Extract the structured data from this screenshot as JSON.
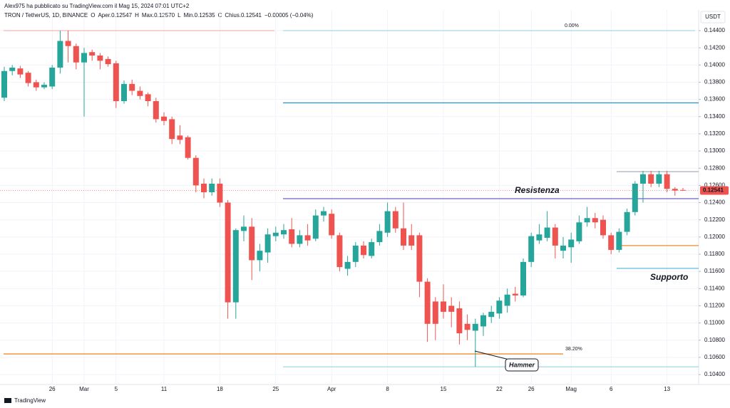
{
  "chart_data": {
    "type": "candlestick",
    "byline": "Alex975 ha pubblicato su TradingView.com il Mag 15, 2024 07:01 UTC+2",
    "legend_parts": [
      {
        "text": "TRON / TetherUS, 1D, BINANCE",
        "color": "#131722"
      },
      {
        "text": "O",
        "color": "#131722"
      },
      {
        "text": "Aper.0.12547",
        "color": "#ef5350"
      },
      {
        "text": "H",
        "color": "#131722"
      },
      {
        "text": "Max.0.12570",
        "color": "#ef5350"
      },
      {
        "text": "L",
        "color": "#131722"
      },
      {
        "text": "Min.0.12535",
        "color": "#ef5350"
      },
      {
        "text": "C",
        "color": "#131722"
      },
      {
        "text": "Chius.0.12541",
        "color": "#ef5350"
      },
      {
        "text": "−0.00005 (−0.04%)",
        "color": "#ef5350"
      }
    ],
    "currency": "USDT",
    "brand": "TradingView",
    "up_color": "#26a69a",
    "down_color": "#ef5350",
    "categories": [
      null,
      null,
      null,
      null,
      null,
      null,
      "26",
      null,
      null,
      null,
      "Mar",
      null,
      null,
      null,
      "5",
      null,
      null,
      null,
      null,
      null,
      "11",
      null,
      null,
      null,
      null,
      null,
      null,
      "18",
      null,
      null,
      null,
      null,
      null,
      null,
      "25",
      null,
      null,
      null,
      null,
      null,
      null,
      "Apr",
      null,
      null,
      null,
      null,
      null,
      null,
      "8",
      null,
      null,
      null,
      null,
      null,
      null,
      "15",
      null,
      null,
      null,
      null,
      null,
      null,
      "22",
      null,
      null,
      null,
      "26",
      null,
      null,
      null,
      null,
      "Mag",
      null,
      null,
      null,
      null,
      "6",
      null,
      null,
      null,
      null,
      null,
      null,
      "13",
      null,
      null
    ],
    "open": [
      0.1362,
      0.1393,
      0.1396,
      0.1391,
      0.138,
      0.1374,
      0.1375,
      0.1397,
      0.1428,
      0.1422,
      0.1403,
      0.1415,
      0.1411,
      0.1407,
      0.1402,
      0.1358,
      0.1378,
      0.137,
      0.1366,
      0.1358,
      0.134,
      0.1337,
      0.1318,
      0.1316,
      0.1292,
      0.1262,
      0.1252,
      0.1262,
      0.124,
      0.1124,
      0.1207,
      0.1212,
      0.1173,
      0.1182,
      0.1201,
      0.1203,
      0.1209,
      0.1192,
      0.1202,
      0.1198,
      0.1225,
      0.1227,
      0.1202,
      0.1163,
      0.1171,
      0.119,
      0.1178,
      0.1194,
      0.1205,
      0.123,
      0.121,
      0.1202,
      0.1202,
      0.1148,
      0.1125,
      0.1125,
      0.112,
      0.1117,
      0.1099,
      0.1091,
      0.1096,
      0.1107,
      0.1111,
      0.112,
      0.1134,
      0.1132,
      0.1171,
      0.1196,
      0.1199,
      0.1211,
      0.1184,
      0.1188,
      0.1195,
      0.1217,
      0.1222,
      0.122,
      0.1202,
      0.1185,
      0.1206,
      0.1229,
      0.1262,
      0.1273,
      0.1262,
      0.1273,
      0.1256,
      0.12547
    ],
    "high": [
      0.1398,
      0.14,
      0.1399,
      0.1393,
      0.1383,
      0.138,
      0.14,
      0.144,
      0.144,
      0.1425,
      0.142,
      0.1418,
      0.1414,
      0.141,
      0.1405,
      0.1382,
      0.1383,
      0.1375,
      0.1368,
      0.1362,
      0.1345,
      0.134,
      0.133,
      0.1318,
      0.1295,
      0.1268,
      0.1268,
      0.1268,
      0.1243,
      0.121,
      0.1225,
      0.1222,
      0.1192,
      0.121,
      0.1212,
      0.1215,
      0.1222,
      0.1208,
      0.1215,
      0.1232,
      0.1235,
      0.1232,
      0.1205,
      0.1178,
      0.1194,
      0.1195,
      0.1198,
      0.1215,
      0.124,
      0.1235,
      0.124,
      0.1215,
      0.1205,
      0.1152,
      0.113,
      0.1145,
      0.113,
      0.1125,
      0.111,
      0.1105,
      0.1112,
      0.112,
      0.113,
      0.114,
      0.1142,
      0.1175,
      0.1205,
      0.1215,
      0.123,
      0.1215,
      0.12,
      0.1205,
      0.1225,
      0.1235,
      0.1228,
      0.1225,
      0.1205,
      0.121,
      0.1233,
      0.1265,
      0.1277,
      0.1277,
      0.1277,
      0.1277,
      0.1258,
      0.1257
    ],
    "low": [
      0.1358,
      0.1388,
      0.1385,
      0.1375,
      0.137,
      0.1372,
      0.1372,
      0.139,
      0.1403,
      0.1395,
      0.134,
      0.1405,
      0.1395,
      0.1398,
      0.135,
      0.1355,
      0.1365,
      0.136,
      0.1352,
      0.1333,
      0.133,
      0.1308,
      0.1308,
      0.129,
      0.1252,
      0.1245,
      0.1248,
      0.1235,
      0.1105,
      0.1105,
      0.1195,
      0.115,
      0.116,
      0.117,
      0.1195,
      0.1198,
      0.1188,
      0.1188,
      0.119,
      0.1195,
      0.1218,
      0.1198,
      0.116,
      0.1155,
      0.1165,
      0.1175,
      0.1175,
      0.119,
      0.12,
      0.1205,
      0.1185,
      0.1185,
      0.113,
      0.1078,
      0.108,
      0.1105,
      0.1095,
      0.1075,
      0.108,
      0.1049,
      0.1085,
      0.11,
      0.1105,
      0.1112,
      0.1125,
      0.113,
      0.1165,
      0.1192,
      0.1195,
      0.1175,
      0.1175,
      0.117,
      0.1192,
      0.1212,
      0.121,
      0.1198,
      0.118,
      0.1182,
      0.1202,
      0.1225,
      0.124,
      0.1258,
      0.1258,
      0.1252,
      0.1248,
      0.12535
    ],
    "close": [
      0.1393,
      0.1397,
      0.1389,
      0.1379,
      0.1374,
      0.1377,
      0.1397,
      0.1428,
      0.1422,
      0.1403,
      0.1414,
      0.1411,
      0.1405,
      0.1401,
      0.1358,
      0.1378,
      0.137,
      0.1364,
      0.1358,
      0.1337,
      0.1335,
      0.1314,
      0.1313,
      0.1292,
      0.126,
      0.1252,
      0.1262,
      0.124,
      0.1124,
      0.1208,
      0.1212,
      0.1173,
      0.1184,
      0.1203,
      0.1205,
      0.1208,
      0.1192,
      0.1202,
      0.1196,
      0.1225,
      0.123,
      0.1202,
      0.1165,
      0.1171,
      0.119,
      0.1179,
      0.1194,
      0.1207,
      0.123,
      0.121,
      0.119,
      0.119,
      0.1148,
      0.1099,
      0.1099,
      0.1113,
      0.1113,
      0.1088,
      0.1092,
      0.1099,
      0.1109,
      0.1113,
      0.1126,
      0.1133,
      0.1132,
      0.1171,
      0.1201,
      0.1203,
      0.1211,
      0.119,
      0.119,
      0.1197,
      0.1217,
      0.1222,
      0.1217,
      0.1202,
      0.1185,
      0.1206,
      0.1229,
      0.1262,
      0.1273,
      0.1262,
      0.1273,
      0.1256,
      0.1254,
      0.12541
    ],
    "price_label": {
      "value": 0.12541,
      "label": "0.12541"
    },
    "ylim": [
      0.10301,
      0.14607
    ],
    "yticks": [
      {
        "value": 0.104,
        "label": "0.10400"
      },
      {
        "value": 0.106,
        "label": "0.10600"
      },
      {
        "value": 0.108,
        "label": "0.10800"
      },
      {
        "value": 0.11,
        "label": "0.11000"
      },
      {
        "value": 0.112,
        "label": "0.11200"
      },
      {
        "value": 0.114,
        "label": "0.11400"
      },
      {
        "value": 0.116,
        "label": "0.11600"
      },
      {
        "value": 0.118,
        "label": "0.11800"
      },
      {
        "value": 0.12,
        "label": "0.12000"
      },
      {
        "value": 0.122,
        "label": "0.12200"
      },
      {
        "value": 0.124,
        "label": "0.12400"
      },
      {
        "value": 0.126,
        "label": "0.12600"
      },
      {
        "value": 0.128,
        "label": "0.12800"
      },
      {
        "value": 0.13,
        "label": "0.13000"
      },
      {
        "value": 0.132,
        "label": "0.13200"
      },
      {
        "value": 0.134,
        "label": "0.13400"
      },
      {
        "value": 0.136,
        "label": "0.13600"
      },
      {
        "value": 0.138,
        "label": "0.13800"
      },
      {
        "value": 0.14,
        "label": "0.14000"
      },
      {
        "value": 0.142,
        "label": "0.14200"
      },
      {
        "value": 0.144,
        "label": "0.14400"
      }
    ],
    "grid": true,
    "lines": [
      {
        "value": 0.144,
        "color": "#a8dbe8",
        "label": "0.00%",
        "label_color": "#b2b5be"
      },
      {
        "value": 0.1356,
        "color": "#3a97c9"
      },
      {
        "value": 0.12446,
        "color": "#6b5fc6"
      },
      {
        "value": 0.1276,
        "color": "#b2b5be"
      },
      {
        "value": 0.119,
        "color": "#f28c28"
      },
      {
        "value": 0.11635,
        "color": "#5bc0de"
      },
      {
        "value": 0.1064,
        "color": "#f28c28",
        "label": "38.20%",
        "label_color": "#f28c28"
      },
      {
        "value": 0.1049,
        "color": "#a8dbe8"
      },
      {
        "value": 0.144,
        "color": "#f4b4b4"
      }
    ],
    "annotations": [
      {
        "text": "Resistenza",
        "color": "#ab47bc"
      },
      {
        "text": "Supporto",
        "color": "#26c6da"
      },
      {
        "text": "Hammer",
        "color": "#131722"
      }
    ]
  }
}
